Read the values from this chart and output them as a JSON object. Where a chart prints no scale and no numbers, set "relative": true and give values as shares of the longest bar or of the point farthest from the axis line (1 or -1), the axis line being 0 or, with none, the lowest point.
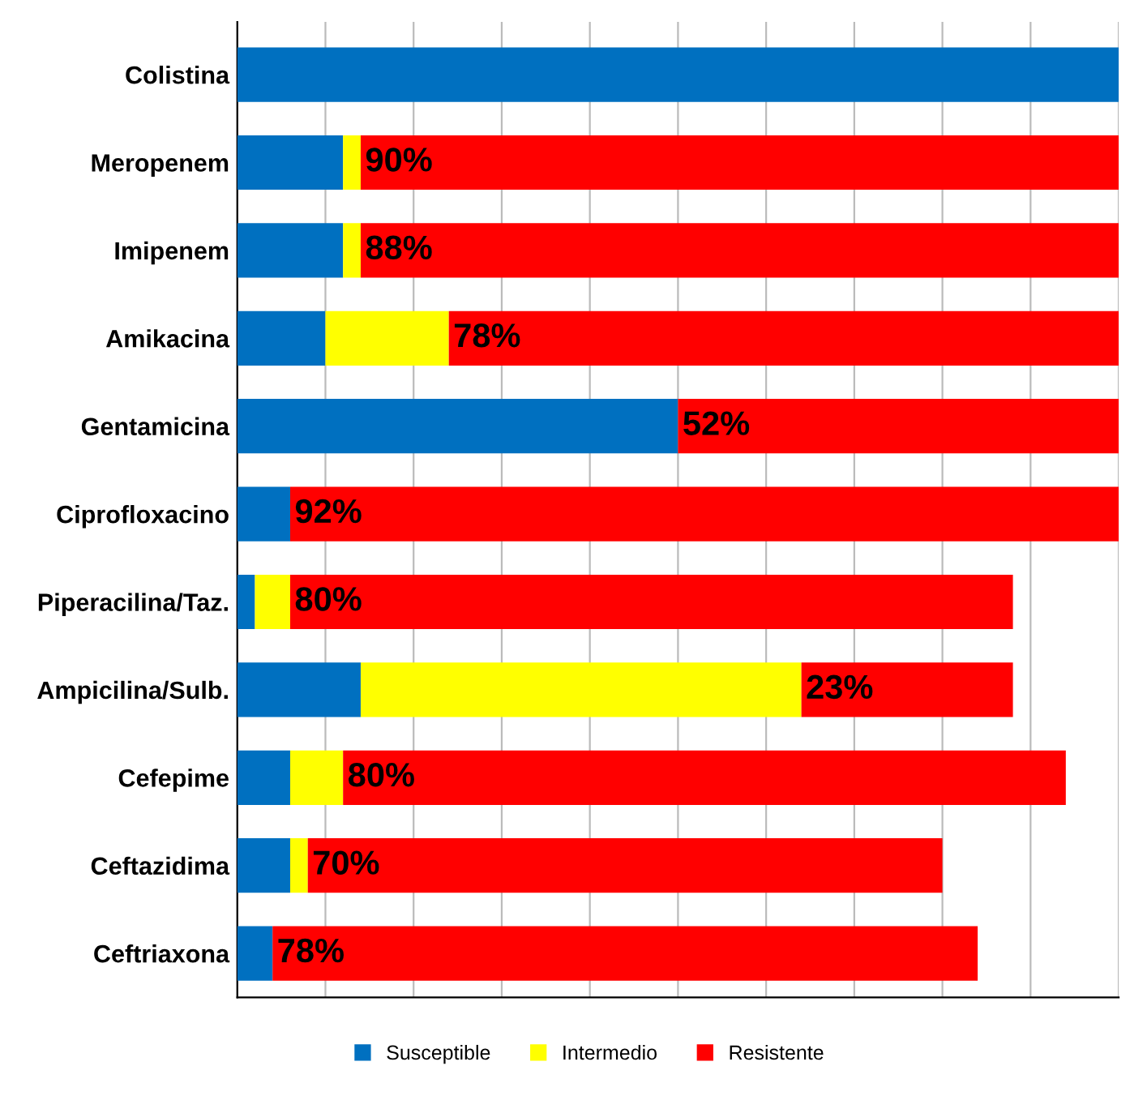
{
  "chart_data": {
    "type": "bar",
    "orientation": "horizontal",
    "stacked": true,
    "relative": true,
    "grid": "x",
    "legend": "bottom",
    "categories": [
      "Colistina",
      "Meropenem",
      "Imipenem",
      "Amikacina",
      "Gentamicina",
      "Ciprofloxacino",
      "Piperacilina/Taz.",
      "Ampicilina/Sulb.",
      "Cefepime",
      "Ceftazidima",
      "Ceftriaxona"
    ],
    "series": [
      {
        "name": "Susceptible",
        "color": "#0070c0",
        "values": [
          1.0,
          0.12,
          0.12,
          0.1,
          0.5,
          0.06,
          0.02,
          0.14,
          0.06,
          0.06,
          0.04
        ]
      },
      {
        "name": "Intermedio",
        "color": "#ffff00",
        "values": [
          0,
          0.02,
          0.02,
          0.14,
          0,
          0,
          0.04,
          0.5,
          0.06,
          0.02,
          0
        ]
      },
      {
        "name": "Resistente",
        "color": "#ff0000",
        "values": [
          0,
          0.86,
          0.86,
          0.76,
          0.5,
          0.94,
          0.82,
          0.24,
          0.82,
          0.72,
          0.8
        ]
      }
    ],
    "annotations": [
      {
        "text": "90%",
        "x": 0.14,
        "y": "Meropenem"
      },
      {
        "text": "88%",
        "x": 0.14,
        "y": "Imipenem"
      },
      {
        "text": "78%",
        "x": 0.24,
        "y": "Amikacina"
      },
      {
        "text": "52%",
        "x": 0.5,
        "y": "Gentamicina"
      },
      {
        "text": "92%",
        "x": 0.06,
        "y": "Ciprofloxacino"
      },
      {
        "text": "80%",
        "x": 0.06,
        "y": "Piperacilina/Taz."
      },
      {
        "text": "23%",
        "x": 0.64,
        "y": "Ampicilina/Sulb."
      },
      {
        "text": "80%",
        "x": 0.12,
        "y": "Cefepime"
      },
      {
        "text": "70%",
        "x": 0.08,
        "y": "Ceftazidima"
      },
      {
        "text": "78%",
        "x": 0.04,
        "y": "Ceftriaxona"
      }
    ]
  }
}
